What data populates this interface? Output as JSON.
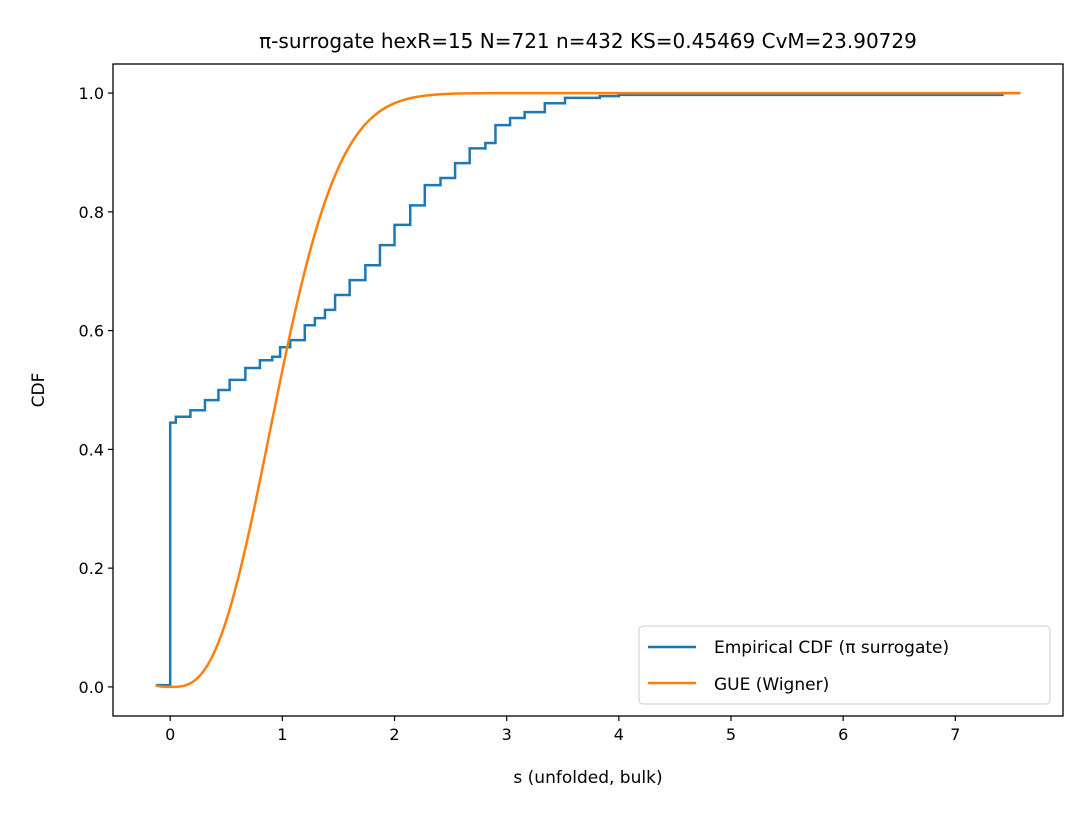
{
  "chart_data": {
    "type": "line",
    "title": "π-surrogate hexR=15  N=721  n=432  KS=0.45469  CvM=23.90729",
    "xlabel": "s (unfolded, bulk)",
    "ylabel": "CDF",
    "xlim": [
      -0.51,
      7.96
    ],
    "ylim": [
      -0.049,
      1.049
    ],
    "xticks": [
      0,
      1,
      2,
      3,
      4,
      5,
      6,
      7
    ],
    "yticks": [
      0.0,
      0.2,
      0.4,
      0.6,
      0.8,
      1.0
    ],
    "ytick_labels": [
      "0.0",
      "0.2",
      "0.4",
      "0.6",
      "0.8",
      "1.0"
    ],
    "grid": false,
    "legend_position": "lower-right",
    "series": [
      {
        "name": "Empirical CDF (π surrogate)",
        "color": "#1f77b4",
        "style": "step",
        "x": [
          -0.13,
          0.0,
          0.0,
          0.05,
          0.18,
          0.31,
          0.43,
          0.53,
          0.67,
          0.8,
          0.91,
          0.98,
          1.07,
          1.2,
          1.29,
          1.38,
          1.47,
          1.6,
          1.74,
          1.87,
          2.0,
          2.14,
          2.27,
          2.41,
          2.54,
          2.67,
          2.81,
          2.9,
          3.03,
          3.16,
          3.34,
          3.52,
          3.83,
          4.0,
          7.42,
          7.58
        ],
        "y": [
          0.003,
          0.01,
          0.445,
          0.455,
          0.466,
          0.483,
          0.5,
          0.517,
          0.537,
          0.55,
          0.556,
          0.572,
          0.584,
          0.609,
          0.621,
          0.635,
          0.66,
          0.685,
          0.71,
          0.744,
          0.778,
          0.811,
          0.845,
          0.857,
          0.882,
          0.907,
          0.916,
          0.946,
          0.958,
          0.968,
          0.983,
          0.992,
          0.995,
          0.997,
          1.0,
          1.0
        ]
      },
      {
        "name": "GUE (Wigner)",
        "color": "#ff7f0e",
        "style": "curve",
        "formula": "F(s)=erf(2s/sqrt(pi)) - (4s/pi)exp(-4s^2/pi)",
        "x_range": [
          -0.13,
          7.58
        ]
      }
    ]
  }
}
